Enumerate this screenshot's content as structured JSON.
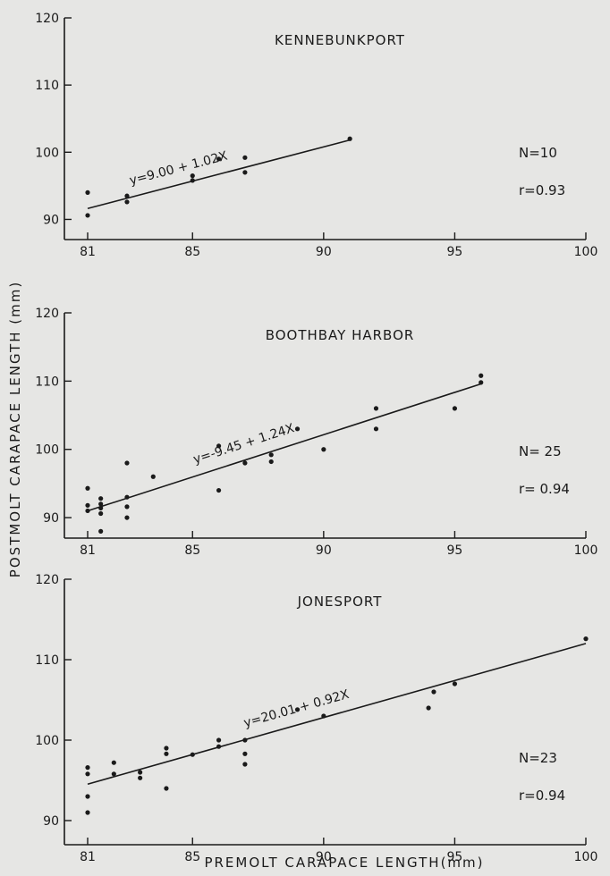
{
  "ylabel": "POSTMOLT  CARAPACE  LENGTH (mm)",
  "xlabel": "PREMOLT  CARAPACE  LENGTH(mm)",
  "chart_data": [
    {
      "type": "scatter",
      "title": "KENNEBUNKPORT",
      "equation": "y=9.00 + 1.02X",
      "n_text": "N=10",
      "r_text": "r=0.93",
      "intercept": 9.0,
      "slope": 1.02,
      "line_x": [
        81,
        91
      ],
      "xlim": [
        81,
        100
      ],
      "ylim": [
        87,
        120
      ],
      "x_ticks": [
        81,
        85,
        90,
        95,
        100
      ],
      "x_tick_labels": [
        "81",
        "85",
        "90",
        "95",
        "100"
      ],
      "y_ticks": [
        90,
        100,
        110,
        120
      ],
      "y_tick_labels": [
        "90",
        "100",
        "110",
        "120"
      ],
      "points": [
        [
          81,
          94
        ],
        [
          81,
          90.6
        ],
        [
          82.5,
          93.5
        ],
        [
          82.5,
          92.6
        ],
        [
          85,
          96.5
        ],
        [
          85,
          95.8
        ],
        [
          86,
          99
        ],
        [
          87,
          99.2
        ],
        [
          87,
          97
        ],
        [
          91,
          102
        ]
      ]
    },
    {
      "type": "scatter",
      "title": "BOOTHBAY  HARBOR",
      "equation": "y=-9.45 + 1.24X",
      "n_text": "N= 25",
      "r_text": "r= 0.94",
      "intercept": -9.45,
      "slope": 1.24,
      "line_x": [
        81,
        96
      ],
      "xlim": [
        81,
        100
      ],
      "ylim": [
        87,
        120
      ],
      "x_ticks": [
        81,
        85,
        90,
        95,
        100
      ],
      "x_tick_labels": [
        "81",
        "85",
        "90",
        "95",
        "100"
      ],
      "y_ticks": [
        90,
        100,
        110,
        120
      ],
      "y_tick_labels": [
        "90",
        "100",
        "110",
        "120"
      ],
      "points": [
        [
          81,
          94.3
        ],
        [
          81,
          91.8
        ],
        [
          81,
          91
        ],
        [
          81.5,
          92.8
        ],
        [
          81.5,
          92
        ],
        [
          81.5,
          91.4
        ],
        [
          81.5,
          90.6
        ],
        [
          81.5,
          88
        ],
        [
          82.5,
          98
        ],
        [
          82.5,
          93
        ],
        [
          82.5,
          91.6
        ],
        [
          82.5,
          90
        ],
        [
          83.5,
          96
        ],
        [
          86,
          100.5
        ],
        [
          86,
          94
        ],
        [
          87,
          98
        ],
        [
          88,
          99.2
        ],
        [
          88,
          98.2
        ],
        [
          89,
          103
        ],
        [
          90,
          100
        ],
        [
          92,
          106
        ],
        [
          92,
          103
        ],
        [
          95,
          106
        ],
        [
          96,
          110.8
        ],
        [
          96,
          109.8
        ]
      ]
    },
    {
      "type": "scatter",
      "title": "JONESPORT",
      "equation": "y=20.01 + 0.92X",
      "n_text": "N=23",
      "r_text": "r=0.94",
      "intercept": 20.01,
      "slope": 0.92,
      "line_x": [
        81,
        100
      ],
      "xlim": [
        81,
        100
      ],
      "ylim": [
        87,
        120
      ],
      "x_ticks": [
        81,
        85,
        90,
        95,
        100
      ],
      "x_tick_labels": [
        "81",
        "85",
        "90",
        "95",
        "100"
      ],
      "y_ticks": [
        90,
        100,
        110,
        120
      ],
      "y_tick_labels": [
        "90",
        "100",
        "110",
        "120"
      ],
      "points": [
        [
          81,
          96.6
        ],
        [
          81,
          95.8
        ],
        [
          81,
          93
        ],
        [
          81,
          91
        ],
        [
          82,
          97.2
        ],
        [
          82,
          95.8
        ],
        [
          83,
          96
        ],
        [
          83,
          95.3
        ],
        [
          84,
          99
        ],
        [
          84,
          98.3
        ],
        [
          84,
          94
        ],
        [
          85,
          98.2
        ],
        [
          86,
          100
        ],
        [
          86,
          99.2
        ],
        [
          87,
          100
        ],
        [
          87,
          98.3
        ],
        [
          87,
          97
        ],
        [
          89,
          103.8
        ],
        [
          90,
          103
        ],
        [
          94,
          104
        ],
        [
          95,
          107
        ],
        [
          100,
          112.6
        ],
        [
          94.2,
          106
        ]
      ]
    }
  ]
}
